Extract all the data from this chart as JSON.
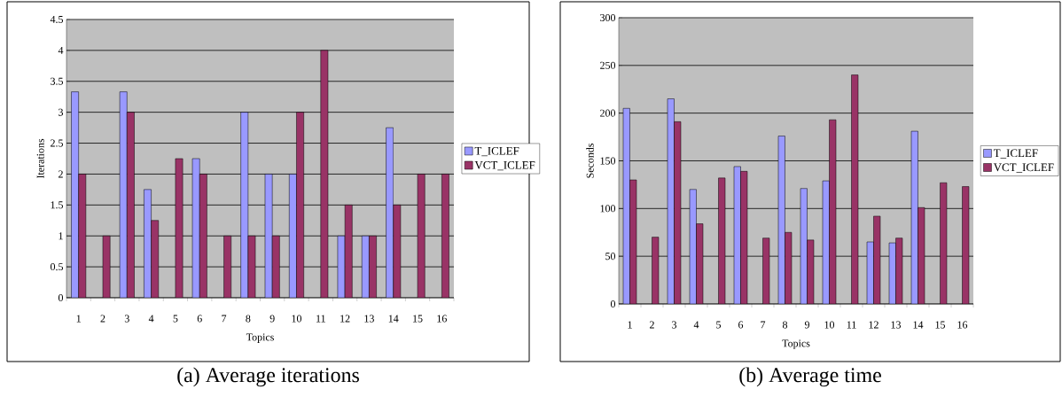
{
  "chart_data": [
    {
      "type": "bar",
      "title": "(a) Average iterations",
      "xlabel": "Topics",
      "ylabel": "Iterations",
      "categories": [
        "1",
        "2",
        "3",
        "4",
        "5",
        "6",
        "7",
        "8",
        "9",
        "10",
        "11",
        "12",
        "13",
        "14",
        "15",
        "16"
      ],
      "series": [
        {
          "name": "T_ICLEF",
          "color": "#9999ff",
          "values": [
            3.33,
            null,
            3.33,
            1.75,
            null,
            2.25,
            null,
            3,
            2,
            2,
            null,
            1,
            1,
            2.75,
            null,
            null
          ]
        },
        {
          "name": "VCT_ICLEF",
          "color": "#993366",
          "values": [
            2,
            1,
            3,
            1.25,
            2.25,
            2,
            1,
            1,
            1,
            3,
            4,
            1.5,
            1,
            1.5,
            2,
            2
          ]
        }
      ],
      "ylim": [
        0,
        4.5
      ],
      "yticks": [
        0,
        0.5,
        1,
        1.5,
        2,
        2.5,
        3,
        3.5,
        4,
        4.5
      ],
      "grid": "y",
      "legend": "right"
    },
    {
      "type": "bar",
      "title": "(b) Average time",
      "xlabel": "Topics",
      "ylabel": "Seconds",
      "categories": [
        "1",
        "2",
        "3",
        "4",
        "5",
        "6",
        "7",
        "8",
        "9",
        "10",
        "11",
        "12",
        "13",
        "14",
        "15",
        "16"
      ],
      "series": [
        {
          "name": "T_ICLEF",
          "color": "#9999ff",
          "values": [
            205,
            null,
            215,
            120,
            null,
            144,
            null,
            176,
            121,
            129,
            null,
            65,
            64,
            181,
            null,
            null
          ]
        },
        {
          "name": "VCT_ICLEF",
          "color": "#993366",
          "values": [
            130,
            70,
            191,
            84,
            132,
            139,
            69,
            75,
            67,
            193,
            240,
            92,
            69,
            101,
            127,
            123
          ]
        }
      ],
      "ylim": [
        0,
        300
      ],
      "yticks": [
        0,
        50,
        100,
        150,
        200,
        250,
        300
      ],
      "grid": "y",
      "legend": "right"
    }
  ]
}
